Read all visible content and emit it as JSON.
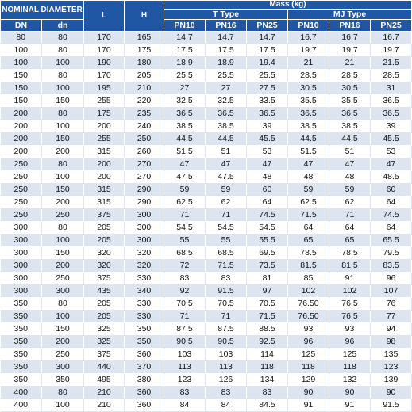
{
  "header": {
    "nominal_diameter": "NOMINAL DIAMETER",
    "dn_upper": "DN",
    "dn_lower": "dn",
    "l": "L",
    "h": "H",
    "mass": "Mass (kg)",
    "t_type": "T Type",
    "mj_type": "MJ Type",
    "pn": [
      "PN10",
      "PN16",
      "PN25",
      "PN10",
      "PN16",
      "PN25"
    ]
  },
  "rows": [
    [
      "80",
      "80",
      "170",
      "165",
      "14.7",
      "14.7",
      "14.7",
      "16.7",
      "16.7",
      "16.7"
    ],
    [
      "100",
      "80",
      "170",
      "175",
      "17.5",
      "17.5",
      "17.5",
      "19.7",
      "19.7",
      "19.7"
    ],
    [
      "100",
      "100",
      "190",
      "180",
      "18.9",
      "18.9",
      "19.4",
      "21",
      "21",
      "21.5"
    ],
    [
      "150",
      "80",
      "170",
      "205",
      "25.5",
      "25.5",
      "25.5",
      "28.5",
      "28.5",
      "28.5"
    ],
    [
      "150",
      "100",
      "195",
      "210",
      "27",
      "27",
      "27.5",
      "30.5",
      "30.5",
      "31"
    ],
    [
      "150",
      "150",
      "255",
      "220",
      "32.5",
      "32.5",
      "33.5",
      "35.5",
      "35.5",
      "36.5"
    ],
    [
      "200",
      "80",
      "175",
      "235",
      "36.5",
      "36.5",
      "36.5",
      "36.5",
      "36.5",
      "36.5"
    ],
    [
      "200",
      "100",
      "200",
      "240",
      "38.5",
      "38.5",
      "39",
      "38.5",
      "38.5",
      "39"
    ],
    [
      "200",
      "150",
      "255",
      "250",
      "44.5",
      "44.5",
      "45.5",
      "44.5",
      "44.5",
      "45.5"
    ],
    [
      "200",
      "200",
      "315",
      "260",
      "51.5",
      "51",
      "53",
      "51.5",
      "51",
      "53"
    ],
    [
      "250",
      "80",
      "200",
      "270",
      "47",
      "47",
      "47",
      "47",
      "47",
      "47"
    ],
    [
      "250",
      "100",
      "200",
      "270",
      "47.5",
      "47.5",
      "48",
      "48",
      "48",
      "48.5"
    ],
    [
      "250",
      "150",
      "315",
      "290",
      "59",
      "59",
      "60",
      "59",
      "59",
      "60"
    ],
    [
      "250",
      "200",
      "315",
      "290",
      "62.5",
      "62",
      "64",
      "62.5",
      "62",
      "64"
    ],
    [
      "250",
      "250",
      "375",
      "300",
      "71",
      "71",
      "74.5",
      "71.5",
      "71",
      "74.5"
    ],
    [
      "300",
      "80",
      "205",
      "300",
      "54.5",
      "54.5",
      "54.5",
      "64",
      "64",
      "64"
    ],
    [
      "300",
      "100",
      "205",
      "300",
      "55",
      "55",
      "55.5",
      "65",
      "65",
      "65.5"
    ],
    [
      "300",
      "150",
      "320",
      "320",
      "68.5",
      "68.5",
      "69.5",
      "78.5",
      "78.5",
      "79.5"
    ],
    [
      "300",
      "200",
      "320",
      "320",
      "72",
      "71.5",
      "73.5",
      "81.5",
      "81.5",
      "83.5"
    ],
    [
      "300",
      "250",
      "375",
      "330",
      "83",
      "83",
      "81",
      "85",
      "91",
      "96"
    ],
    [
      "300",
      "300",
      "435",
      "340",
      "92",
      "91.5",
      "97",
      "102",
      "102",
      "107"
    ],
    [
      "350",
      "80",
      "205",
      "330",
      "70.5",
      "70.5",
      "70.5",
      "76.50",
      "76.5",
      "76"
    ],
    [
      "350",
      "100",
      "205",
      "330",
      "71",
      "71",
      "71.5",
      "76.50",
      "76.5",
      "77"
    ],
    [
      "350",
      "150",
      "325",
      "350",
      "87.5",
      "87.5",
      "88.5",
      "93",
      "93",
      "94"
    ],
    [
      "350",
      "200",
      "325",
      "350",
      "90.5",
      "90.5",
      "92.5",
      "96",
      "96",
      "98"
    ],
    [
      "350",
      "250",
      "375",
      "360",
      "103",
      "103",
      "114",
      "125",
      "125",
      "135"
    ],
    [
      "350",
      "300",
      "440",
      "370",
      "113",
      "113",
      "118",
      "118",
      "118",
      "123"
    ],
    [
      "350",
      "350",
      "495",
      "380",
      "123",
      "126",
      "134",
      "129",
      "132",
      "139"
    ],
    [
      "400",
      "80",
      "210",
      "360",
      "83",
      "83",
      "83",
      "90",
      "90",
      "90"
    ],
    [
      "400",
      "100",
      "210",
      "360",
      "84",
      "84",
      "84.5",
      "91",
      "91",
      "91.5"
    ]
  ]
}
